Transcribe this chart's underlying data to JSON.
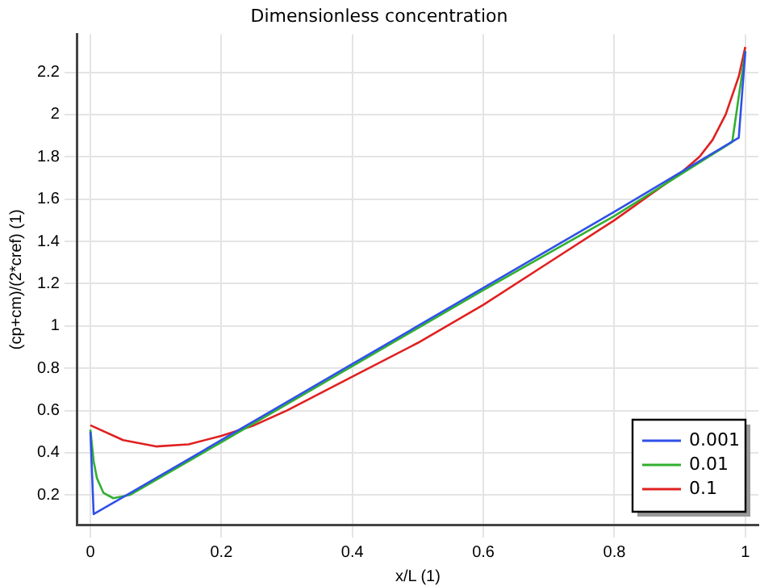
{
  "chart_data": {
    "type": "line",
    "title": "Dimensionless concentration",
    "xlabel": "x/L (1)",
    "ylabel": "(cp+cm)/(2*cref) (1)",
    "xlim": [
      -0.02,
      1.02
    ],
    "ylim": [
      0.06,
      2.38
    ],
    "xticks": [
      0,
      0.2,
      0.4,
      0.6,
      0.8,
      1
    ],
    "yticks": [
      0.2,
      0.4,
      0.6,
      0.8,
      1,
      1.2,
      1.4,
      1.6,
      1.8,
      2,
      2.2
    ],
    "grid": true,
    "legend": "bottom right",
    "marker": "none",
    "line_style": "solid",
    "series": [
      {
        "name": "0.001",
        "color": "#3050e8",
        "x": [
          0,
          0.005,
          0.05,
          0.2,
          0.4,
          0.6,
          0.8,
          0.99,
          1
        ],
        "values": [
          0.5,
          0.11,
          0.19,
          0.46,
          0.82,
          1.18,
          1.54,
          1.89,
          2.3
        ]
      },
      {
        "name": "0.01",
        "color": "#30b030",
        "x": [
          0,
          0.005,
          0.01,
          0.02,
          0.035,
          0.06,
          0.2,
          0.4,
          0.6,
          0.8,
          0.98,
          1
        ],
        "values": [
          0.51,
          0.36,
          0.28,
          0.21,
          0.185,
          0.2,
          0.45,
          0.81,
          1.17,
          1.52,
          1.87,
          2.3
        ]
      },
      {
        "name": "0.1",
        "color": "#e02020",
        "x": [
          0,
          0.05,
          0.1,
          0.15,
          0.2,
          0.25,
          0.3,
          0.4,
          0.5,
          0.6,
          0.7,
          0.8,
          0.85,
          0.9,
          0.93,
          0.95,
          0.97,
          0.99,
          1
        ],
        "values": [
          0.53,
          0.46,
          0.43,
          0.44,
          0.48,
          0.53,
          0.6,
          0.76,
          0.92,
          1.1,
          1.3,
          1.5,
          1.61,
          1.72,
          1.8,
          1.88,
          2.0,
          2.18,
          2.32
        ]
      }
    ]
  }
}
